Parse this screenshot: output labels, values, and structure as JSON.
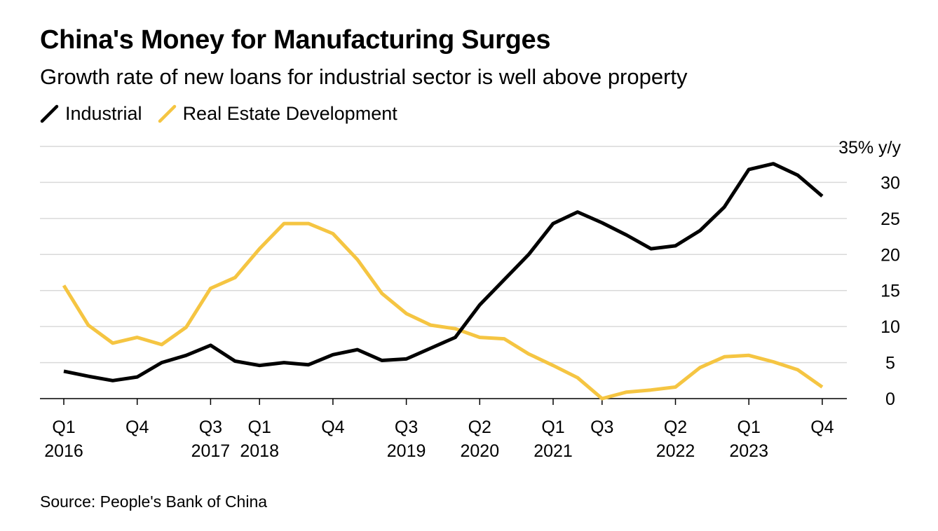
{
  "header": {
    "title": "China's Money for Manufacturing Surges",
    "subtitle": "Growth rate of new loans for industrial sector is well above property"
  },
  "footer": {
    "source": "Source: People's Bank of China"
  },
  "colors": {
    "industrial": "#000000",
    "real_estate": "#f5c542",
    "grid": "#d9d9d9"
  },
  "chart_data": {
    "type": "line",
    "title": "China's Money for Manufacturing Surges",
    "subtitle": "Growth rate of new loans for industrial sector is well above property",
    "x": [
      "2016-Q1",
      "2016-Q2",
      "2016-Q3",
      "2016-Q4",
      "2017-Q1",
      "2017-Q2",
      "2017-Q3",
      "2017-Q4",
      "2018-Q1",
      "2018-Q2",
      "2018-Q3",
      "2018-Q4",
      "2019-Q1",
      "2019-Q2",
      "2019-Q3",
      "2019-Q4",
      "2020-Q1",
      "2020-Q2",
      "2020-Q3",
      "2020-Q4",
      "2021-Q1",
      "2021-Q2",
      "2021-Q3",
      "2021-Q4",
      "2022-Q1",
      "2022-Q2",
      "2022-Q3",
      "2022-Q4",
      "2023-Q1",
      "2023-Q2",
      "2023-Q3",
      "2023-Q4"
    ],
    "series": [
      {
        "name": "Industrial",
        "color": "#000000",
        "values": [
          3.8,
          3.1,
          2.5,
          3.0,
          5.0,
          6.0,
          7.4,
          5.2,
          4.6,
          5.0,
          4.7,
          6.1,
          6.8,
          5.3,
          5.5,
          7.0,
          8.5,
          13.0,
          16.5,
          20.0,
          24.3,
          25.9,
          24.4,
          22.7,
          20.8,
          21.2,
          23.3,
          26.6,
          31.8,
          32.6,
          31.0,
          28.1
        ]
      },
      {
        "name": "Real Estate Development",
        "color": "#f5c542",
        "values": [
          15.7,
          10.2,
          7.7,
          8.5,
          7.5,
          9.9,
          15.3,
          16.8,
          20.8,
          24.3,
          24.3,
          22.9,
          19.3,
          14.6,
          11.8,
          10.2,
          9.7,
          8.5,
          8.3,
          6.2,
          4.6,
          2.9,
          0.0,
          0.9,
          1.2,
          1.6,
          4.3,
          5.8,
          6.0,
          5.1,
          4.0,
          1.6
        ]
      }
    ],
    "y_unit_label": "35% y/y",
    "y_ticks": [
      0,
      5,
      10,
      15,
      20,
      25,
      30
    ],
    "ylim": [
      0,
      35
    ],
    "x_tick_labels": [
      {
        "index": 0,
        "quarter": "Q1",
        "year": "2016"
      },
      {
        "index": 3,
        "quarter": "Q4",
        "year": ""
      },
      {
        "index": 6,
        "quarter": "Q3",
        "year": "2017"
      },
      {
        "index": 8,
        "quarter": "Q1",
        "year": "2018"
      },
      {
        "index": 11,
        "quarter": "Q4",
        "year": ""
      },
      {
        "index": 14,
        "quarter": "Q3",
        "year": "2019"
      },
      {
        "index": 17,
        "quarter": "Q2",
        "year": "2020"
      },
      {
        "index": 20,
        "quarter": "Q1",
        "year": "2021"
      },
      {
        "index": 22,
        "quarter": "Q3",
        "year": ""
      },
      {
        "index": 25,
        "quarter": "Q2",
        "year": "2022"
      },
      {
        "index": 28,
        "quarter": "Q1",
        "year": "2023"
      },
      {
        "index": 31,
        "quarter": "Q4",
        "year": ""
      }
    ],
    "legend_position": "top-left",
    "y_axis_side": "right",
    "grid": true
  }
}
